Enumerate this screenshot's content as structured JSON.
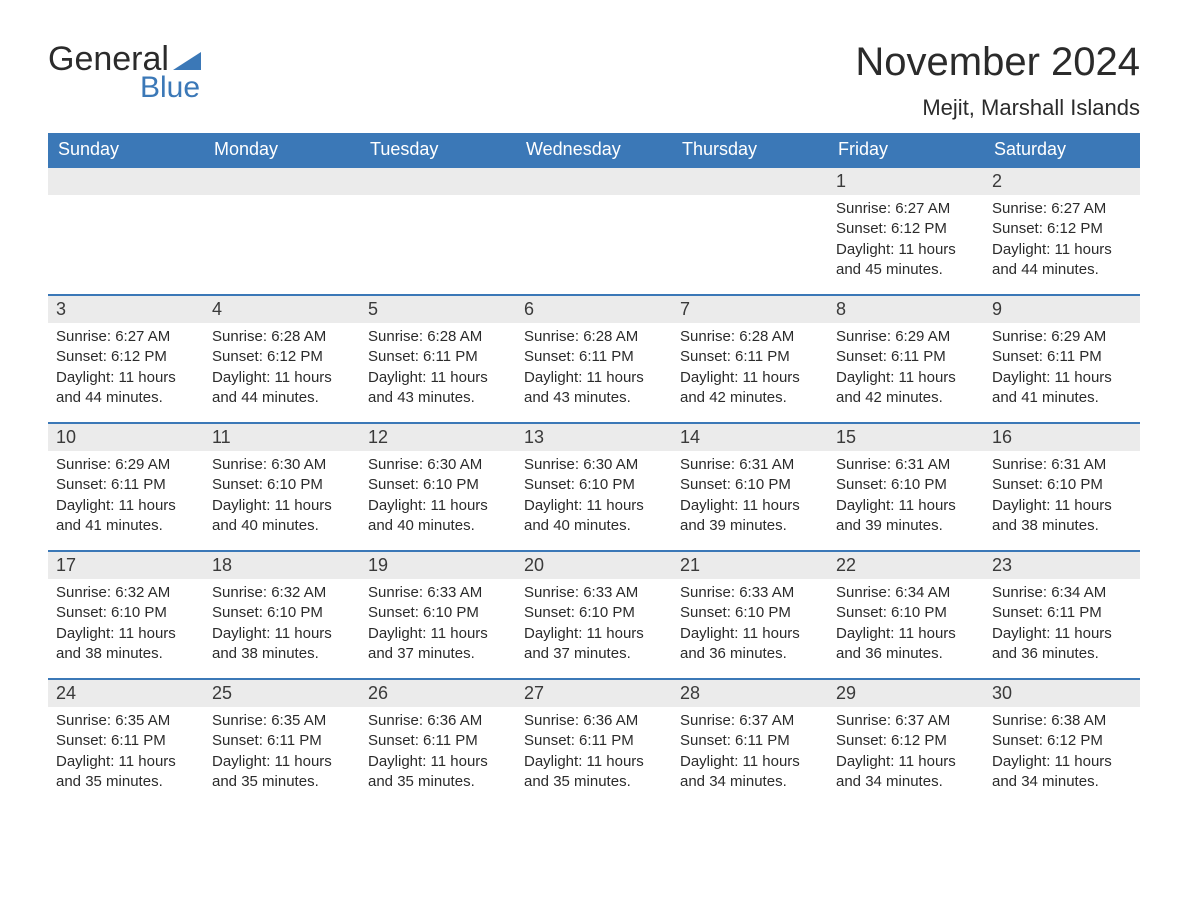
{
  "logo": {
    "general": "General",
    "blue": "Blue",
    "tri_color": "#3b78b7"
  },
  "title": "November 2024",
  "location": "Mejit, Marshall Islands",
  "colors": {
    "header_bg": "#3b78b7",
    "header_text": "#ffffff",
    "daynum_bg": "#ebebeb",
    "text": "#2b2b2b",
    "row_border": "#3b78b7",
    "page_bg": "#ffffff"
  },
  "weekdays": [
    "Sunday",
    "Monday",
    "Tuesday",
    "Wednesday",
    "Thursday",
    "Friday",
    "Saturday"
  ],
  "weeks": [
    [
      null,
      null,
      null,
      null,
      null,
      {
        "n": "1",
        "sr": "Sunrise: 6:27 AM",
        "ss": "Sunset: 6:12 PM",
        "d1": "Daylight: 11 hours",
        "d2": "and 45 minutes."
      },
      {
        "n": "2",
        "sr": "Sunrise: 6:27 AM",
        "ss": "Sunset: 6:12 PM",
        "d1": "Daylight: 11 hours",
        "d2": "and 44 minutes."
      }
    ],
    [
      {
        "n": "3",
        "sr": "Sunrise: 6:27 AM",
        "ss": "Sunset: 6:12 PM",
        "d1": "Daylight: 11 hours",
        "d2": "and 44 minutes."
      },
      {
        "n": "4",
        "sr": "Sunrise: 6:28 AM",
        "ss": "Sunset: 6:12 PM",
        "d1": "Daylight: 11 hours",
        "d2": "and 44 minutes."
      },
      {
        "n": "5",
        "sr": "Sunrise: 6:28 AM",
        "ss": "Sunset: 6:11 PM",
        "d1": "Daylight: 11 hours",
        "d2": "and 43 minutes."
      },
      {
        "n": "6",
        "sr": "Sunrise: 6:28 AM",
        "ss": "Sunset: 6:11 PM",
        "d1": "Daylight: 11 hours",
        "d2": "and 43 minutes."
      },
      {
        "n": "7",
        "sr": "Sunrise: 6:28 AM",
        "ss": "Sunset: 6:11 PM",
        "d1": "Daylight: 11 hours",
        "d2": "and 42 minutes."
      },
      {
        "n": "8",
        "sr": "Sunrise: 6:29 AM",
        "ss": "Sunset: 6:11 PM",
        "d1": "Daylight: 11 hours",
        "d2": "and 42 minutes."
      },
      {
        "n": "9",
        "sr": "Sunrise: 6:29 AM",
        "ss": "Sunset: 6:11 PM",
        "d1": "Daylight: 11 hours",
        "d2": "and 41 minutes."
      }
    ],
    [
      {
        "n": "10",
        "sr": "Sunrise: 6:29 AM",
        "ss": "Sunset: 6:11 PM",
        "d1": "Daylight: 11 hours",
        "d2": "and 41 minutes."
      },
      {
        "n": "11",
        "sr": "Sunrise: 6:30 AM",
        "ss": "Sunset: 6:10 PM",
        "d1": "Daylight: 11 hours",
        "d2": "and 40 minutes."
      },
      {
        "n": "12",
        "sr": "Sunrise: 6:30 AM",
        "ss": "Sunset: 6:10 PM",
        "d1": "Daylight: 11 hours",
        "d2": "and 40 minutes."
      },
      {
        "n": "13",
        "sr": "Sunrise: 6:30 AM",
        "ss": "Sunset: 6:10 PM",
        "d1": "Daylight: 11 hours",
        "d2": "and 40 minutes."
      },
      {
        "n": "14",
        "sr": "Sunrise: 6:31 AM",
        "ss": "Sunset: 6:10 PM",
        "d1": "Daylight: 11 hours",
        "d2": "and 39 minutes."
      },
      {
        "n": "15",
        "sr": "Sunrise: 6:31 AM",
        "ss": "Sunset: 6:10 PM",
        "d1": "Daylight: 11 hours",
        "d2": "and 39 minutes."
      },
      {
        "n": "16",
        "sr": "Sunrise: 6:31 AM",
        "ss": "Sunset: 6:10 PM",
        "d1": "Daylight: 11 hours",
        "d2": "and 38 minutes."
      }
    ],
    [
      {
        "n": "17",
        "sr": "Sunrise: 6:32 AM",
        "ss": "Sunset: 6:10 PM",
        "d1": "Daylight: 11 hours",
        "d2": "and 38 minutes."
      },
      {
        "n": "18",
        "sr": "Sunrise: 6:32 AM",
        "ss": "Sunset: 6:10 PM",
        "d1": "Daylight: 11 hours",
        "d2": "and 38 minutes."
      },
      {
        "n": "19",
        "sr": "Sunrise: 6:33 AM",
        "ss": "Sunset: 6:10 PM",
        "d1": "Daylight: 11 hours",
        "d2": "and 37 minutes."
      },
      {
        "n": "20",
        "sr": "Sunrise: 6:33 AM",
        "ss": "Sunset: 6:10 PM",
        "d1": "Daylight: 11 hours",
        "d2": "and 37 minutes."
      },
      {
        "n": "21",
        "sr": "Sunrise: 6:33 AM",
        "ss": "Sunset: 6:10 PM",
        "d1": "Daylight: 11 hours",
        "d2": "and 36 minutes."
      },
      {
        "n": "22",
        "sr": "Sunrise: 6:34 AM",
        "ss": "Sunset: 6:10 PM",
        "d1": "Daylight: 11 hours",
        "d2": "and 36 minutes."
      },
      {
        "n": "23",
        "sr": "Sunrise: 6:34 AM",
        "ss": "Sunset: 6:11 PM",
        "d1": "Daylight: 11 hours",
        "d2": "and 36 minutes."
      }
    ],
    [
      {
        "n": "24",
        "sr": "Sunrise: 6:35 AM",
        "ss": "Sunset: 6:11 PM",
        "d1": "Daylight: 11 hours",
        "d2": "and 35 minutes."
      },
      {
        "n": "25",
        "sr": "Sunrise: 6:35 AM",
        "ss": "Sunset: 6:11 PM",
        "d1": "Daylight: 11 hours",
        "d2": "and 35 minutes."
      },
      {
        "n": "26",
        "sr": "Sunrise: 6:36 AM",
        "ss": "Sunset: 6:11 PM",
        "d1": "Daylight: 11 hours",
        "d2": "and 35 minutes."
      },
      {
        "n": "27",
        "sr": "Sunrise: 6:36 AM",
        "ss": "Sunset: 6:11 PM",
        "d1": "Daylight: 11 hours",
        "d2": "and 35 minutes."
      },
      {
        "n": "28",
        "sr": "Sunrise: 6:37 AM",
        "ss": "Sunset: 6:11 PM",
        "d1": "Daylight: 11 hours",
        "d2": "and 34 minutes."
      },
      {
        "n": "29",
        "sr": "Sunrise: 6:37 AM",
        "ss": "Sunset: 6:12 PM",
        "d1": "Daylight: 11 hours",
        "d2": "and 34 minutes."
      },
      {
        "n": "30",
        "sr": "Sunrise: 6:38 AM",
        "ss": "Sunset: 6:12 PM",
        "d1": "Daylight: 11 hours",
        "d2": "and 34 minutes."
      }
    ]
  ]
}
